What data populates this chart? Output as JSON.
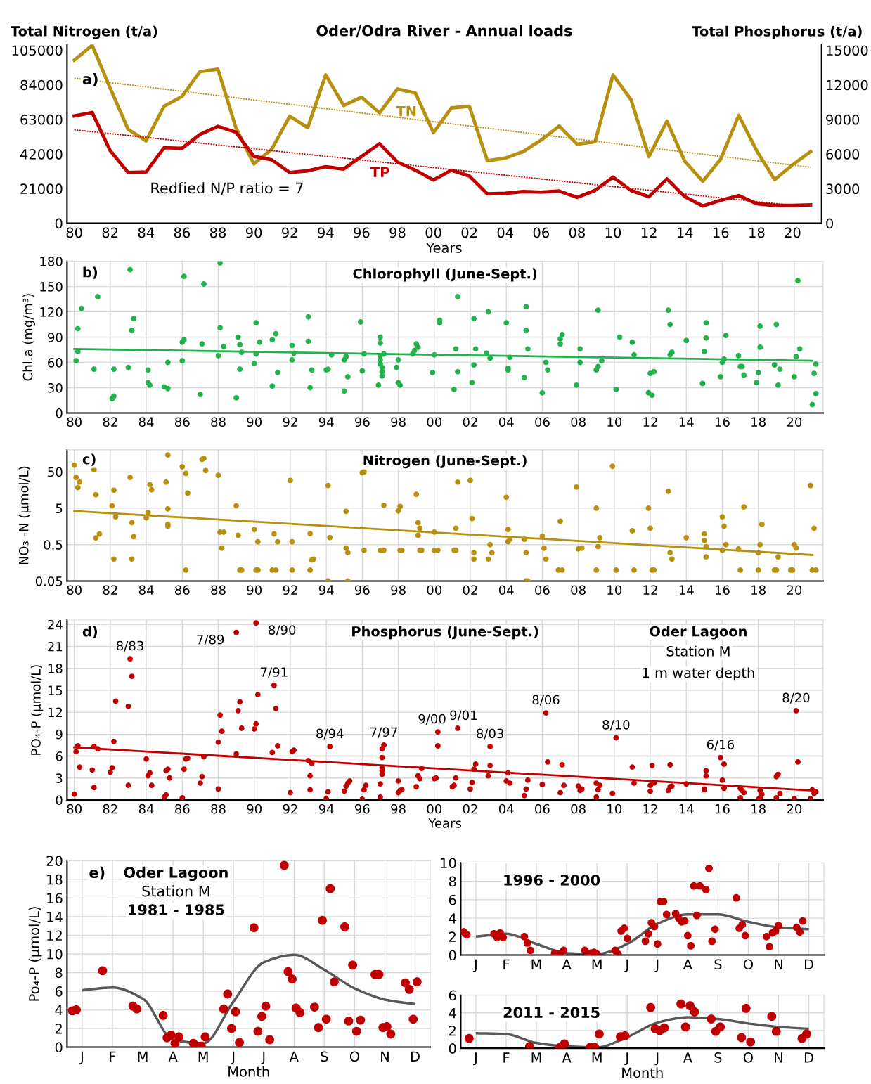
{
  "chart_data": [
    {
      "type": "line",
      "title": "Oder/Odra River - Annual loads",
      "xlabel": "Years",
      "ylabel": "Total Nitrogen (t/a)",
      "y2label": "Total Phosphorus (t/a)",
      "x": [
        1980,
        1981,
        1982,
        1983,
        1984,
        1985,
        1986,
        1987,
        1988,
        1989,
        1990,
        1991,
        1992,
        1993,
        1994,
        1995,
        1996,
        1997,
        1998,
        1999,
        2000,
        2001,
        2002,
        2003,
        2004,
        2005,
        2006,
        2007,
        2008,
        2009,
        2010,
        2011,
        2012,
        2013,
        2014,
        2015,
        2016,
        2017,
        2018,
        2019,
        2020,
        2021
      ],
      "series": [
        {
          "name": "TN",
          "color": "#b8900f",
          "values": [
            99000,
            108000,
            82000,
            57000,
            50000,
            71000,
            77000,
            92000,
            93500,
            58000,
            36000,
            45000,
            65000,
            58000,
            90000,
            71500,
            76500,
            67000,
            81500,
            79000,
            55000,
            70000,
            71000,
            38000,
            39500,
            43500,
            50500,
            59000,
            48000,
            49500,
            90000,
            75000,
            40500,
            62000,
            37500,
            25500,
            39000,
            65500,
            44000,
            26500,
            35500,
            43500
          ]
        },
        {
          "name": "TP",
          "axis": "y2",
          "color": "#c00000",
          "values": [
            9300,
            9600,
            6300,
            4400,
            4450,
            6550,
            6500,
            7700,
            8400,
            7900,
            5800,
            5500,
            4400,
            4550,
            4900,
            4700,
            5800,
            6900,
            5300,
            4600,
            3750,
            4600,
            4100,
            2550,
            2600,
            2750,
            2700,
            2800,
            2250,
            2850,
            4000,
            2850,
            2300,
            3850,
            2300,
            1500,
            2000,
            2400,
            1700,
            1550,
            1550,
            1600
          ]
        },
        {
          "line_style": "dotted",
          "color": "#b8900f",
          "x": [
            1980,
            2021
          ],
          "values": [
            88000,
            34000
          ]
        },
        {
          "line_style": "dotted",
          "axis": "y2",
          "color": "#c00000",
          "x": [
            1980,
            2020
          ],
          "values": [
            8100,
            1550
          ]
        }
      ],
      "xlim": [
        1979.6,
        2021.6
      ],
      "ylim": [
        0,
        108500
      ],
      "yticks": [
        0,
        21000,
        42000,
        63000,
        84000,
        105000
      ],
      "y2lim": [
        0,
        15500
      ],
      "y2ticks": [
        0,
        3000,
        6000,
        9000,
        12000,
        15000
      ],
      "xticks": [
        {
          "value": 1980,
          "label": "80"
        },
        {
          "value": 1982,
          "label": "82"
        },
        {
          "value": 1984,
          "label": "84"
        },
        {
          "value": 1986,
          "label": "86"
        },
        {
          "value": 1988,
          "label": "88"
        },
        {
          "value": 1990,
          "label": "90"
        },
        {
          "value": 1992,
          "label": "92"
        },
        {
          "value": 1994,
          "label": "94"
        },
        {
          "value": 1996,
          "label": "96"
        },
        {
          "value": 1998,
          "label": "98"
        },
        {
          "value": 2000,
          "label": "00"
        },
        {
          "value": 2002,
          "label": "02"
        },
        {
          "value": 2004,
          "label": "04"
        },
        {
          "value": 2006,
          "label": "06"
        },
        {
          "value": 2008,
          "label": "08"
        },
        {
          "value": 2010,
          "label": "10"
        },
        {
          "value": 2012,
          "label": "12"
        },
        {
          "value": 2014,
          "label": "14"
        },
        {
          "value": 2016,
          "label": "16"
        },
        {
          "value": 2018,
          "label": "18"
        },
        {
          "value": 2020,
          "label": "20"
        }
      ],
      "annotations": [
        "a)",
        "Redfied N/P ratio = 7"
      ]
    },
    {
      "type": "scatter",
      "title": "Chlorophyll (June-Sept.)",
      "ylabel": "Chl.a (mg/m³)",
      "grid": true,
      "series": [
        {
          "marker": "circle",
          "color": "#22b14c",
          "x": [
            1980.1,
            1980.2,
            1980.2,
            1980.4,
            1981.1,
            1981.3,
            1982.1,
            1982.2,
            1982.2,
            1983.0,
            1983.1,
            1983.2,
            1983.3,
            1984.1,
            1984.2,
            1984.1,
            1985.0,
            1985.2,
            1985.2,
            1986.0,
            1986.0,
            1986.1,
            1986.1,
            1987.0,
            1987.1,
            1987.2,
            1988.0,
            1988.1,
            1988.1,
            1988.3,
            1989.0,
            1989.1,
            1989.2,
            1989.2,
            1989.3,
            1990.0,
            1990.1,
            1990.1,
            1990.3,
            1991.0,
            1991.0,
            1991.2,
            1991.3,
            1992.1,
            1992.1,
            1992.2,
            1993.0,
            1993.0,
            1993.1,
            1993.2,
            1994.0,
            1994.1,
            1994.3,
            1995.0,
            1995.0,
            1995.1,
            1995.2,
            1995.9,
            1996.0,
            1996.1,
            1996.9,
            1997.0,
            1997.0,
            1997.0,
            1997.0,
            1997.0,
            1997.1,
            1997.1,
            1997.1,
            1997.2,
            1997.9,
            1998.0,
            1998.0,
            1998.1,
            1998.8,
            1998.9,
            1999.0,
            1999.1,
            1999.9,
            2000.0,
            2000.3,
            2000.3,
            2001.1,
            2001.2,
            2001.3,
            2001.3,
            2002.1,
            2002.2,
            2002.2,
            2002.3,
            2002.9,
            2003.0,
            2003.1,
            2004.0,
            2004.1,
            2004.1,
            2004.2,
            2005.0,
            2005.1,
            2005.1,
            2005.2,
            2006.0,
            2006.2,
            2006.3,
            2007.0,
            2007.0,
            2007.1,
            2007.9,
            2008.1,
            2008.1,
            2009.0,
            2009.1,
            2009.1,
            2009.3,
            2010.1,
            2010.3,
            2011.0,
            2011.1,
            2011.9,
            2012.0,
            2012.1,
            2012.2,
            2013.0,
            2013.1,
            2013.1,
            2013.2,
            2014.0,
            2014.9,
            2015.0,
            2015.1,
            2015.1,
            2015.9,
            2016.0,
            2016.1,
            2016.2,
            2016.9,
            2017.0,
            2017.1,
            2017.2,
            2017.9,
            2018.0,
            2018.1,
            2018.1,
            2018.9,
            2019.0,
            2019.1,
            2019.2,
            2020.0,
            2020.1,
            2020.2,
            2020.3,
            2021.0,
            2021.1,
            2021.2,
            2021.2
          ],
          "values": [
            62,
            73,
            100,
            124,
            52,
            138,
            17,
            20,
            52,
            54,
            170,
            98,
            112,
            36,
            33,
            51,
            31,
            29,
            60,
            62,
            84,
            87,
            162,
            22,
            82,
            153,
            68,
            178,
            101,
            79,
            18,
            90,
            81,
            52,
            72,
            59,
            70,
            107,
            84,
            32,
            87,
            94,
            48,
            80,
            63,
            71,
            114,
            85,
            30,
            51,
            51,
            52,
            69,
            26,
            63,
            67,
            43,
            108,
            50,
            70,
            33,
            90,
            83,
            68,
            63,
            58,
            54,
            49,
            44,
            70,
            54,
            36,
            63,
            33,
            70,
            74,
            82,
            78,
            48,
            69,
            110,
            107,
            28,
            76,
            138,
            49,
            36,
            112,
            57,
            76,
            71,
            120,
            65,
            107,
            51,
            53,
            66,
            42,
            98,
            126,
            76,
            24,
            60,
            51,
            82,
            88,
            93,
            33,
            76,
            60,
            51,
            55,
            122,
            62,
            28,
            90,
            84,
            69,
            24,
            47,
            21,
            49,
            122,
            69,
            105,
            72,
            86,
            35,
            73,
            89,
            107,
            43,
            60,
            64,
            92,
            68,
            55,
            55,
            45,
            36,
            48,
            78,
            103,
            57,
            105,
            33,
            52,
            43,
            67,
            157,
            76,
            10,
            47,
            58,
            23
          ]
        },
        {
          "type": "line",
          "color": "#22b14c",
          "x": [
            1980,
            2021
          ],
          "values": [
            76,
            62
          ]
        }
      ],
      "xlim": [
        1979.6,
        2021.6
      ],
      "ylim": [
        0,
        180
      ],
      "yticks": [
        0,
        30,
        60,
        90,
        120,
        150,
        180
      ],
      "xticks": [
        {
          "value": 1980,
          "label": "80"
        },
        {
          "value": 1982,
          "label": "82"
        },
        {
          "value": 1984,
          "label": "84"
        },
        {
          "value": 1986,
          "label": "86"
        },
        {
          "value": 1988,
          "label": "88"
        },
        {
          "value": 1990,
          "label": "90"
        },
        {
          "value": 1992,
          "label": "92"
        },
        {
          "value": 1994,
          "label": "94"
        },
        {
          "value": 1996,
          "label": "96"
        },
        {
          "value": 1998,
          "label": "98"
        },
        {
          "value": 2000,
          "label": "00"
        },
        {
          "value": 2002,
          "label": "02"
        },
        {
          "value": 2004,
          "label": "04"
        },
        {
          "value": 2006,
          "label": "06"
        },
        {
          "value": 2008,
          "label": "08"
        },
        {
          "value": 2010,
          "label": "10"
        },
        {
          "value": 2012,
          "label": "12"
        },
        {
          "value": 2014,
          "label": "14"
        },
        {
          "value": 2016,
          "label": "16"
        },
        {
          "value": 2018,
          "label": "18"
        },
        {
          "value": 2020,
          "label": "20"
        }
      ],
      "annotations": [
        "b)"
      ]
    },
    {
      "type": "scatter",
      "title": "Nitrogen (June-Sept.)",
      "ylabel": "NO₃ -N (µmol/L)",
      "grid": true,
      "log": "y",
      "series": [
        {
          "marker": "circle",
          "color": "#b8900f",
          "x": [
            1980.0,
            1980.1,
            1980.2,
            1980.3,
            1981.1,
            1981.2,
            1981.2,
            1981.4,
            1982.1,
            1982.2,
            1982.3,
            1982.2,
            1983.1,
            1983.2,
            1983.3,
            1983.2,
            1984.0,
            1984.1,
            1984.2,
            1984.3,
            1985.1,
            1985.2,
            1985.2,
            1985.2,
            1985.2,
            1986.0,
            1986.2,
            1986.3,
            1986.2,
            1987.1,
            1987.2,
            1987.3,
            1988.0,
            1988.1,
            1988.3,
            1988.2,
            1989.0,
            1989.1,
            1989.2,
            1989.3,
            1990.0,
            1990.2,
            1990.1,
            1990.2,
            1991.1,
            1991.3,
            1991.0,
            1991.2,
            1992.0,
            1992.1,
            1992.1,
            1993.1,
            1993.2,
            1993.3,
            1993.1,
            1994.1,
            1994.2,
            1994.1,
            1995.1,
            1995.1,
            1995.2,
            1995.2,
            1996.0,
            1996.1,
            1996.1,
            1997.0,
            1997.1,
            1997.2,
            1997.2,
            1998.0,
            1998.1,
            1998.1,
            1998.2,
            1999.0,
            1999.1,
            1999.2,
            1999.1,
            1999.2,
            1999.3,
            2000.0,
            2000.0,
            2000.2,
            2001.1,
            2001.2,
            2001.2,
            2001.3,
            2002.0,
            2002.1,
            2002.2,
            2002.2,
            2003.0,
            2003.1,
            2003.2,
            2004.0,
            2004.1,
            2004.1,
            2004.2,
            2005.0,
            2005.1,
            2005.1,
            2005.2,
            2006.0,
            2006.1,
            2006.2,
            2006.9,
            2007.1,
            2007.0,
            2007.9,
            2008.0,
            2008.2,
            2009.0,
            2009.1,
            2009.2,
            2009.0,
            2009.9,
            2010.1,
            2011.0,
            2011.1,
            2011.9,
            2012.0,
            2012.1,
            2012.2,
            2013.0,
            2013.1,
            2013.2,
            2014.0,
            2015.0,
            2015.0,
            2015.1,
            2015.1,
            2016.0,
            2016.1,
            2016.2,
            2016.0,
            2017.0,
            2016.9,
            2017.2,
            2018.0,
            2018.1,
            2018.2,
            2018.0,
            2018.9,
            2019.0,
            2019.1,
            2019.8,
            2019.9,
            2020.0,
            2020.1,
            2020.9,
            2021.0,
            2021.2,
            2021.1
          ],
          "values": [
            76,
            35,
            18.5,
            26,
            57,
            11.7,
            0.76,
            0.98,
            5.8,
            15.6,
            2.9,
            0.2,
            35,
            2.0,
            0.82,
            0.2,
            2.7,
            3.8,
            22,
            16,
            26,
            1.6,
            1.8,
            4.8,
            145,
            69,
            45,
            13,
            0.1,
            109,
            117,
            54,
            40,
            1.1,
            1.1,
            0.4,
            5.8,
            0.9,
            0.1,
            0.1,
            1.3,
            0.6,
            0.1,
            0.1,
            0.98,
            0.6,
            0.1,
            0.1,
            29,
            0.6,
            0.1,
            1.0,
            0.19,
            0.2,
            0.1,
            21,
            0.78,
            0.05,
            0.4,
            4.1,
            0.3,
            0.05,
            47,
            50,
            0.35,
            0.35,
            0.35,
            0.35,
            6,
            4.2,
            5.6,
            0.35,
            0.35,
            12,
            2.0,
            1.4,
            0.9,
            0.35,
            0.35,
            1.1,
            0.35,
            0.35,
            0.35,
            0.35,
            1.4,
            26,
            29,
            2.6,
            0.3,
            0.2,
            0.2,
            0.5,
            0.3,
            10,
            1.3,
            0.6,
            0.7,
            0.7,
            0.3,
            0.05,
            0.05,
            0.85,
            0.4,
            0.2,
            0.1,
            0.1,
            2.2,
            19,
            0.38,
            0.4,
            5,
            0.44,
            0.77,
            0.1,
            71,
            0.1,
            1.2,
            0.1,
            5,
            1.4,
            0.1,
            0.1,
            14.5,
            0.3,
            0.2,
            0.77,
            0.65,
            0.98,
            0.44,
            0.23,
            2.9,
            1.6,
            0.5,
            0.35,
            0.1,
            0.38,
            5.4,
            0.3,
            0.5,
            1.8,
            0.1,
            0.1,
            0.1,
            0.23,
            0.1,
            0.1,
            0.5,
            0.4,
            21,
            0.1,
            0.1,
            1.4
          ]
        },
        {
          "type": "line",
          "color": "#b8900f",
          "x": [
            1980,
            2021
          ],
          "values": [
            4.2,
            0.26
          ]
        }
      ],
      "xlim": [
        1979.6,
        2021.6
      ],
      "ylim": [
        0.05,
        200
      ],
      "yticks": [
        0.05,
        0.5,
        5,
        50
      ],
      "xticks": [
        {
          "value": 1980,
          "label": "80"
        },
        {
          "value": 1982,
          "label": "82"
        },
        {
          "value": 1984,
          "label": "84"
        },
        {
          "value": 1986,
          "label": "86"
        },
        {
          "value": 1988,
          "label": "88"
        },
        {
          "value": 1990,
          "label": "90"
        },
        {
          "value": 1992,
          "label": "92"
        },
        {
          "value": 1994,
          "label": "94"
        },
        {
          "value": 1996,
          "label": "96"
        },
        {
          "value": 1998,
          "label": "98"
        },
        {
          "value": 2000,
          "label": "00"
        },
        {
          "value": 2002,
          "label": "02"
        },
        {
          "value": 2004,
          "label": "04"
        },
        {
          "value": 2006,
          "label": "06"
        },
        {
          "value": 2008,
          "label": "08"
        },
        {
          "value": 2010,
          "label": "10"
        },
        {
          "value": 2012,
          "label": "12"
        },
        {
          "value": 2014,
          "label": "14"
        },
        {
          "value": 2016,
          "label": "16"
        },
        {
          "value": 2018,
          "label": "18"
        },
        {
          "value": 2020,
          "label": "20"
        }
      ],
      "annotations": [
        "c)"
      ]
    },
    {
      "type": "scatter",
      "title": "Phosphorus (June-Sept.)",
      "xlabel": "Years",
      "ylabel": "PO₄-P (µmol/L)",
      "grid": true,
      "series": [
        {
          "marker": "circle",
          "color": "#c00000",
          "x": [
            1980.0,
            1980.1,
            1980.2,
            1980.3,
            1981.0,
            1981.1,
            1981.1,
            1981.3,
            1982.0,
            1982.1,
            1982.2,
            1982.3,
            1983.0,
            1983.0,
            1983.1,
            1983.2,
            1984.0,
            1984.1,
            1984.2,
            1984.3,
            1985.0,
            1985.1,
            1985.1,
            1985.2,
            1985.3,
            1986.0,
            1986.1,
            1986.2,
            1986.3,
            1987.0,
            1987.1,
            1987.2,
            1988.0,
            1988.0,
            1988.1,
            1988.2,
            1989.0,
            1989.0,
            1989.1,
            1989.2,
            1989.3,
            1990.0,
            1990.1,
            1990.1,
            1990.2,
            1991.0,
            1991.1,
            1991.2,
            1991.3,
            1992.0,
            1992.1,
            1992.2,
            1993.0,
            1993.1,
            1993.1,
            1993.2,
            1994.0,
            1994.1,
            1994.2,
            1995.0,
            1995.1,
            1995.2,
            1995.3,
            1996.0,
            1996.1,
            1996.2,
            1997.0,
            1997.0,
            1997.1,
            1997.1,
            1997.1,
            1997.1,
            1997.1,
            1997.2,
            1998.0,
            1998.1,
            1998.2,
            1998.0,
            1999.0,
            1999.1,
            1999.2,
            1999.3,
            2000.0,
            2000.1,
            2000.2,
            2000.2,
            2001.0,
            2001.1,
            2001.2,
            2001.3,
            2002.0,
            2002.1,
            2002.2,
            2002.3,
            2003.0,
            2003.1,
            2003.1,
            2004.0,
            2004.1,
            2004.2,
            2005.0,
            2005.1,
            2005.2,
            2006.0,
            2006.2,
            2006.3,
            2007.0,
            2007.1,
            2007.2,
            2008.0,
            2008.1,
            2008.2,
            2009.0,
            2009.0,
            2009.1,
            2009.2,
            2009.9,
            2010.1,
            2011.0,
            2011.1,
            2012.0,
            2012.0,
            2012.1,
            2012.2,
            2013.0,
            2013.1,
            2013.1,
            2013.2,
            2014.0,
            2015.0,
            2015.0,
            2015.1,
            2015.1,
            2015.9,
            2016.0,
            2016.1,
            2016.1,
            2017.0,
            2017.0,
            2017.1,
            2017.2,
            2018.0,
            2018.1,
            2018.1,
            2018.2,
            2019.0,
            2019.0,
            2019.1,
            2019.2,
            2020.0,
            2020.1,
            2020.2,
            2020.9,
            2021.0,
            2021.1,
            2021.2
          ],
          "values": [
            0.8,
            6.6,
            7.4,
            4.5,
            4.1,
            1.7,
            7.3,
            7.0,
            3.8,
            4.4,
            8.0,
            13.5,
            2.0,
            12.8,
            19.3,
            16.9,
            5.6,
            3.3,
            3.7,
            2.0,
            0.4,
            0.7,
            4.0,
            4.2,
            3.0,
            0.3,
            4.2,
            5.6,
            5.7,
            2.3,
            3.2,
            5.9,
            1.5,
            7.9,
            11.6,
            9.4,
            6.3,
            22.9,
            12.2,
            13.4,
            9.8,
            9.7,
            10.4,
            24.2,
            14.4,
            6.5,
            15.7,
            12.5,
            7.4,
            1.0,
            6.6,
            6.8,
            5.4,
            3.3,
            1.4,
            5.0,
            0.2,
            1.1,
            7.3,
            1.2,
            1.9,
            2.3,
            2.6,
            0.1,
            1.4,
            2.0,
            0.4,
            2.2,
            3.5,
            4.0,
            4.4,
            5.8,
            7.0,
            7.5,
            1.0,
            1.3,
            1.4,
            2.6,
            1.8,
            3.3,
            2.9,
            4.3,
            2.9,
            3.0,
            7.4,
            9.3,
            1.8,
            2.0,
            3.0,
            9.8,
            1.5,
            2.4,
            4.2,
            4.9,
            3.3,
            4.7,
            7.3,
            2.6,
            3.7,
            2.3,
            0.6,
            1.5,
            2.7,
            2.1,
            11.9,
            5.2,
            1.0,
            4.8,
            2.0,
            1.9,
            1.3,
            1.5,
            0.4,
            2.3,
            1.4,
            2.0,
            0.9,
            8.5,
            4.5,
            2.3,
            1.2,
            2.0,
            4.7,
            2.3,
            1.3,
            1.8,
            4.8,
            1.9,
            2.2,
            1.5,
            1.4,
            3.3,
            4.0,
            5.8,
            2.7,
            1.6,
            4.9,
            0.3,
            1.6,
            1.3,
            1.0,
            0.1,
            0.3,
            1.3,
            0.8,
            0.3,
            3.2,
            3.5,
            0.9,
            0.2,
            12.2,
            5.2,
            0.2,
            1.4,
            0.9,
            1.1
          ]
        },
        {
          "type": "line",
          "color": "#c00000",
          "x": [
            1980,
            2021
          ],
          "values": [
            7.2,
            1.3
          ]
        }
      ],
      "xlim": [
        1979.6,
        2021.6
      ],
      "ylim": [
        0,
        24.6
      ],
      "yticks": [
        0,
        3,
        6,
        9,
        12,
        15,
        18,
        21,
        24
      ],
      "xticks": [
        {
          "value": 1980,
          "label": "80"
        },
        {
          "value": 1982,
          "label": "82"
        },
        {
          "value": 1984,
          "label": "84"
        },
        {
          "value": 1986,
          "label": "86"
        },
        {
          "value": 1988,
          "label": "88"
        },
        {
          "value": 1990,
          "label": "90"
        },
        {
          "value": 1992,
          "label": "92"
        },
        {
          "value": 1994,
          "label": "94"
        },
        {
          "value": 1996,
          "label": "96"
        },
        {
          "value": 1998,
          "label": "98"
        },
        {
          "value": 2000,
          "label": "00"
        },
        {
          "value": 2002,
          "label": "02"
        },
        {
          "value": 2004,
          "label": "04"
        },
        {
          "value": 2006,
          "label": "06"
        },
        {
          "value": 2008,
          "label": "08"
        },
        {
          "value": 2010,
          "label": "10"
        },
        {
          "value": 2012,
          "label": "12"
        },
        {
          "value": 2014,
          "label": "14"
        },
        {
          "value": 2016,
          "label": "16"
        },
        {
          "value": 2018,
          "label": "18"
        },
        {
          "value": 2020,
          "label": "20"
        }
      ],
      "annotations": [
        "d)",
        "Oder Lagoon",
        "Station M",
        "1 m water depth",
        {
          "text": "8/83",
          "x": 1983.1,
          "y": 19.3
        },
        {
          "text": "7/89",
          "x": 1989.0,
          "y": 22.9
        },
        {
          "text": "8/90",
          "x": 1990.1,
          "y": 24.2
        },
        {
          "text": "7/91",
          "x": 1991.1,
          "y": 15.7
        },
        {
          "text": "8/94",
          "x": 1994.2,
          "y": 7.3
        },
        {
          "text": "7/97",
          "x": 1997.2,
          "y": 7.5
        },
        {
          "text": "9/00",
          "x": 2000.2,
          "y": 9.3
        },
        {
          "text": "9/01",
          "x": 2001.3,
          "y": 9.8
        },
        {
          "text": "8/03",
          "x": 2003.1,
          "y": 7.3
        },
        {
          "text": "8/06",
          "x": 2006.2,
          "y": 11.9
        },
        {
          "text": "8/10",
          "x": 2010.1,
          "y": 8.5
        },
        {
          "text": "6/16",
          "x": 2015.9,
          "y": 5.8
        },
        {
          "text": "8/20",
          "x": 2020.1,
          "y": 12.2
        }
      ]
    },
    {
      "type": "scatter",
      "xlabel": "Month",
      "ylabel": "Po₄-P (µmol/L)",
      "grid": true,
      "categories": [
        "J",
        "F",
        "M",
        "A",
        "M",
        "J",
        "J",
        "A",
        "S",
        "O",
        "N",
        "D"
      ],
      "series": [
        {
          "marker": "circle",
          "color": "#c00000",
          "values": [
            3.9,
            8.2,
            4.4,
            3.4,
            0.4,
            4.1,
            12.8,
            19.5,
            4.3,
            12.9,
            7.8,
            6.9
          ]
        },
        {
          "marker": "circle",
          "color": "#c00000",
          "values": [
            4.0,
            null,
            4.1,
            1.0,
            0.1,
            5.7,
            1.7,
            8.1,
            2.1,
            2.8,
            7.8,
            6.2
          ]
        },
        {
          "marker": "circle",
          "color": "#c00000",
          "values": [
            null,
            null,
            null,
            1.3,
            0.1,
            2.0,
            3.3,
            7.3,
            13.6,
            8.8,
            2.1,
            3.0
          ]
        },
        {
          "marker": "circle",
          "color": "#c00000",
          "values": [
            null,
            null,
            null,
            0.4,
            1.1,
            3.8,
            4.4,
            4.2,
            3.0,
            1.7,
            2.2,
            7.0
          ]
        },
        {
          "marker": "circle",
          "color": "#c00000",
          "values": [
            null,
            null,
            null,
            1.1,
            null,
            0.5,
            0.8,
            3.7,
            17.0,
            2.9,
            1.4,
            null
          ]
        },
        {
          "marker": "circle",
          "color": "#c00000",
          "values": [
            null,
            null,
            null,
            null,
            null,
            null,
            null,
            null,
            7.0,
            null,
            null,
            null
          ]
        },
        {
          "type": "line",
          "color": "#595959",
          "values": [
            6.1,
            6.4,
            5.2,
            0.8,
            0.4,
            4.9,
            9.1,
            9.9,
            8.3,
            6.3,
            5.1,
            4.6
          ]
        }
      ],
      "ylim": [
        0,
        20
      ],
      "yticks": [
        0,
        2,
        4,
        6,
        8,
        10,
        12,
        14,
        16,
        18,
        20
      ],
      "annotations": [
        "e)",
        "Oder Lagoon",
        "Station M",
        "1981 - 1985"
      ]
    },
    {
      "type": "scatter",
      "grid": true,
      "categories": [
        "J",
        "F",
        "M",
        "A",
        "M",
        "J",
        "J",
        "A",
        "S",
        "O",
        "N",
        "D"
      ],
      "series": [
        {
          "marker": "circle",
          "color": "#c00000",
          "values": [
            2.5,
            2.3,
            2.0,
            0.2,
            0.5,
            0.5,
            1.5,
            4.5,
            7.1,
            6.2,
            2.0,
            3.0
          ]
        },
        {
          "marker": "circle",
          "color": "#c00000",
          "values": [
            2.2,
            1.9,
            1.3,
            0.1,
            0.1,
            0.1,
            2.3,
            4.0,
            9.4,
            2.9,
            0.9,
            2.5
          ]
        },
        {
          "marker": "circle",
          "color": "#c00000",
          "values": [
            null,
            2.4,
            0.5,
            0.1,
            0.2,
            2.6,
            3.5,
            3.6,
            1.5,
            3.3,
            2.4,
            3.7
          ]
        },
        {
          "marker": "circle",
          "color": "#c00000",
          "values": [
            null,
            1.9,
            null,
            0.5,
            0.3,
            2.9,
            3.1,
            3.7,
            2.8,
            2.1,
            2.6,
            null
          ]
        },
        {
          "marker": "circle",
          "color": "#c00000",
          "values": [
            null,
            null,
            null,
            null,
            0.1,
            1.8,
            1.2,
            2.1,
            null,
            null,
            3.2,
            null
          ]
        },
        {
          "marker": "circle",
          "color": "#c00000",
          "values": [
            null,
            null,
            null,
            null,
            null,
            null,
            5.8,
            1.0,
            null,
            null,
            null,
            null
          ]
        },
        {
          "marker": "circle",
          "color": "#c00000",
          "values": [
            null,
            null,
            null,
            null,
            null,
            null,
            5.8,
            7.5,
            null,
            null,
            null,
            null
          ]
        },
        {
          "marker": "circle",
          "color": "#c00000",
          "values": [
            null,
            null,
            null,
            null,
            null,
            null,
            4.4,
            4.3,
            null,
            null,
            null,
            null
          ]
        },
        {
          "marker": "circle",
          "color": "#c00000",
          "values": [
            null,
            null,
            null,
            null,
            null,
            null,
            null,
            7.5,
            null,
            null,
            null,
            null
          ]
        },
        {
          "type": "line",
          "color": "#595959",
          "values": [
            2.0,
            2.3,
            1.2,
            0.2,
            0.1,
            1.2,
            3.4,
            4.4,
            4.4,
            3.6,
            3.0,
            2.8
          ]
        }
      ],
      "ylim": [
        0,
        10
      ],
      "yticks": [
        0,
        2,
        4,
        6,
        8,
        10
      ],
      "annotations": [
        "1996 - 2000"
      ]
    },
    {
      "type": "scatter",
      "xlabel": "Month",
      "grid": true,
      "categories": [
        "J",
        "F",
        "M",
        "A",
        "M",
        "J",
        "J",
        "A",
        "S",
        "O",
        "N",
        "D"
      ],
      "series": [
        {
          "marker": "circle",
          "color": "#c00000",
          "values": [
            1.1,
            null,
            0.2,
            0.1,
            0.1,
            1.3,
            4.6,
            5.0,
            3.3,
            1.2,
            3.6,
            1.1
          ]
        },
        {
          "marker": "circle",
          "color": "#c00000",
          "values": [
            null,
            null,
            null,
            0.5,
            0.1,
            1.4,
            2.2,
            2.4,
            1.9,
            4.5,
            1.9,
            1.6
          ]
        },
        {
          "marker": "circle",
          "color": "#c00000",
          "values": [
            null,
            null,
            null,
            null,
            1.6,
            null,
            2.0,
            4.8,
            2.4,
            0.7,
            null,
            null
          ]
        },
        {
          "marker": "circle",
          "color": "#c00000",
          "values": [
            null,
            null,
            null,
            null,
            null,
            null,
            2.3,
            4.1,
            null,
            null,
            null,
            null
          ]
        },
        {
          "type": "line",
          "color": "#595959",
          "values": [
            1.7,
            1.6,
            0.6,
            0.2,
            0.1,
            1.25,
            2.9,
            3.5,
            3.3,
            2.8,
            2.4,
            2.2
          ]
        }
      ],
      "ylim": [
        0,
        6
      ],
      "yticks": [
        0,
        2,
        4,
        6
      ],
      "annotations": [
        "2011 - 2015"
      ]
    }
  ]
}
